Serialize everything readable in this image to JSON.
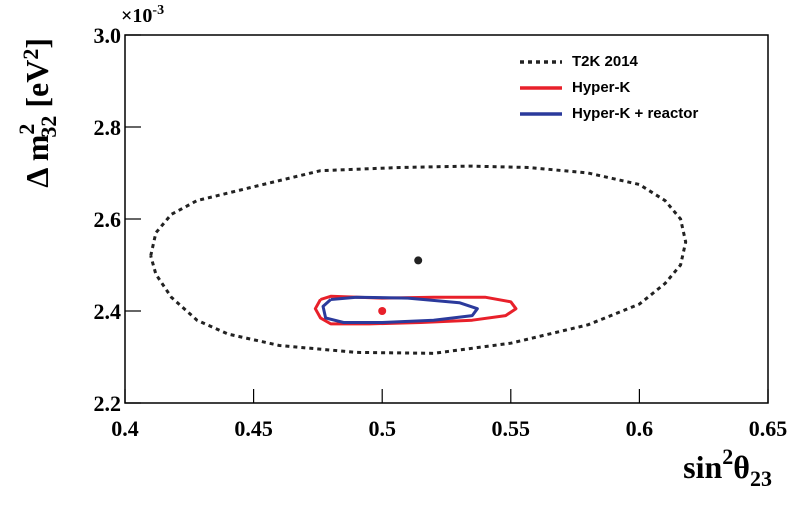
{
  "chart_data": {
    "type": "line",
    "xlabel": [
      "sin",
      "2",
      "θ",
      "23"
    ],
    "ylabel": [
      "Δ m",
      "2",
      "32",
      " [eV",
      "2",
      "]"
    ],
    "y_offset_label": {
      "base": "×10",
      "exponent": "-3"
    },
    "xlim": [
      0.4,
      0.65
    ],
    "xticks": [
      0.4,
      0.45,
      0.5,
      0.55,
      0.6,
      0.65
    ],
    "ylim": [
      2.2,
      3.0
    ],
    "yticks": [
      {
        "value": 2.2,
        "label": "2.2"
      },
      2.4,
      2.6,
      2.8,
      {
        "value": 3.0,
        "label": "3.0"
      }
    ],
    "legend": "top-right",
    "series": [
      {
        "name": "T2K 2014",
        "color": "#222222",
        "dashed": true,
        "x": [
          0.41,
          0.412,
          0.418,
          0.428,
          0.45,
          0.476,
          0.507,
          0.534,
          0.557,
          0.58,
          0.6,
          0.61,
          0.616,
          0.618,
          0.616,
          0.61,
          0.6,
          0.58,
          0.55,
          0.52,
          0.49,
          0.46,
          0.44,
          0.428,
          0.418,
          0.412,
          0.41
        ],
        "values": [
          2.52,
          2.57,
          2.61,
          2.64,
          2.67,
          2.705,
          2.712,
          2.715,
          2.712,
          2.7,
          2.675,
          2.64,
          2.6,
          2.55,
          2.5,
          2.46,
          2.415,
          2.37,
          2.33,
          2.308,
          2.31,
          2.325,
          2.35,
          2.38,
          2.43,
          2.48,
          2.52
        ]
      },
      {
        "name": "Hyper-K",
        "color": "#e8202a",
        "dashed": false,
        "x": [
          0.476,
          0.48,
          0.5,
          0.52,
          0.54,
          0.55,
          0.552,
          0.548,
          0.535,
          0.515,
          0.495,
          0.48,
          0.476,
          0.474,
          0.476
        ],
        "values": [
          2.425,
          2.432,
          2.428,
          2.43,
          2.43,
          2.42,
          2.405,
          2.39,
          2.38,
          2.375,
          2.372,
          2.372,
          2.385,
          2.405,
          2.425
        ]
      },
      {
        "name": "Hyper-K + reactor",
        "color": "#2b3a9c",
        "dashed": false,
        "x": [
          0.48,
          0.49,
          0.51,
          0.53,
          0.537,
          0.535,
          0.52,
          0.5,
          0.485,
          0.478,
          0.477,
          0.48
        ],
        "values": [
          2.425,
          2.43,
          2.428,
          2.418,
          2.405,
          2.39,
          2.38,
          2.375,
          2.375,
          2.385,
          2.41,
          2.425
        ]
      }
    ],
    "points": [
      {
        "x": 0.514,
        "y": 2.51,
        "color": "#222222"
      },
      {
        "x": 0.5,
        "y": 2.4,
        "color": "#e8202a"
      }
    ]
  }
}
